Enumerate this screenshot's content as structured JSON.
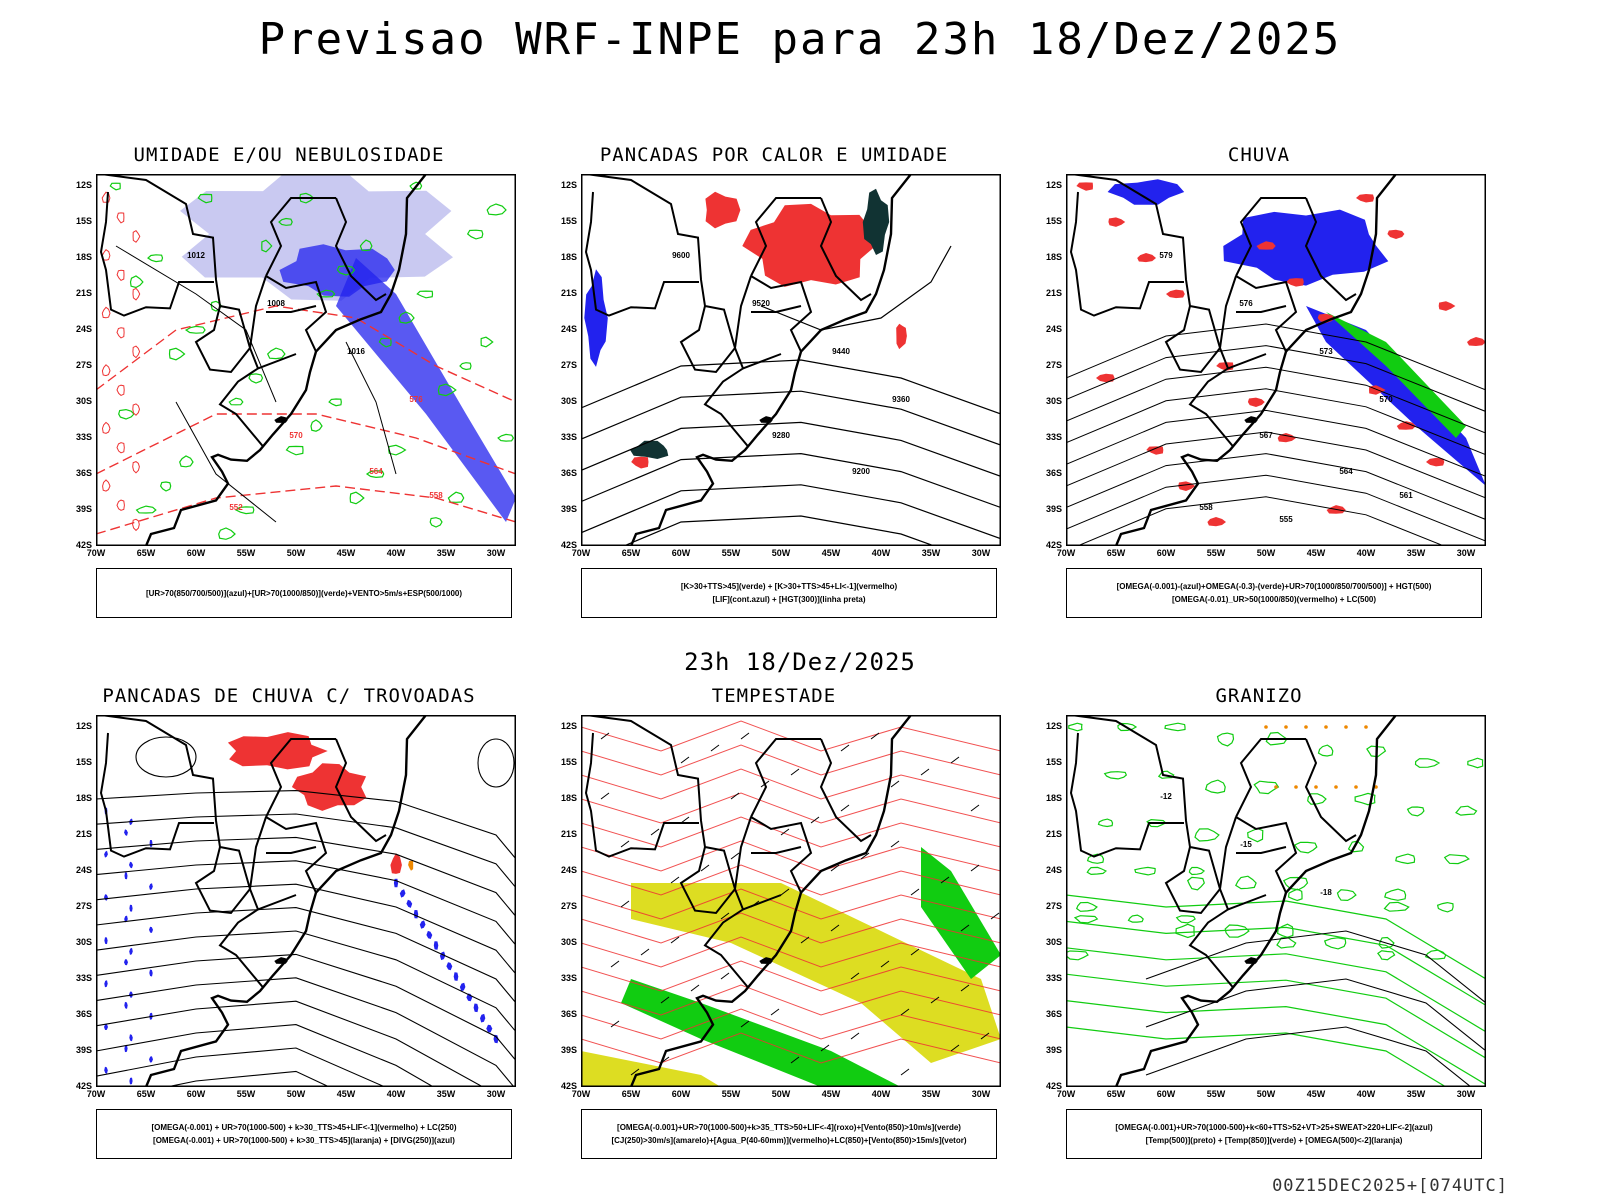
{
  "title": "Previsao WRF-INPE  para 23h 18/Dez/2025",
  "subtitle": "23h 18/Dez/2025",
  "footer": "00Z15DEC2025+[074UTC]",
  "lat_labels": [
    "12S",
    "15S",
    "18S",
    "21S",
    "24S",
    "27S",
    "30S",
    "33S",
    "36S",
    "39S",
    "42S"
  ],
  "lon_labels": [
    "70W",
    "65W",
    "60W",
    "55W",
    "50W",
    "45W",
    "40W",
    "35W",
    "30W"
  ],
  "colors": {
    "blue": "#2222ee",
    "light_blue": "#8888ee",
    "green": "#11cc11",
    "red": "#ee3333",
    "yellow": "#dddd22",
    "orange": "#ee8800",
    "dark_teal": "#113333"
  },
  "panels": [
    {
      "id": "umidade",
      "title": "UMIDADE E/OU NEBULOSIDADE",
      "legend": [
        "[UR>70(850/700/500)](azul)+[UR>70(1000/850)](verde)+VENTO>5m/s+ESP(500/1000)"
      ],
      "contour_labels": [
        "1012",
        "1008",
        "1016",
        "576",
        "570",
        "564",
        "558",
        "552"
      ]
    },
    {
      "id": "pancadas-calor",
      "title": "PANCADAS POR CALOR E UMIDADE",
      "legend": [
        "[K>30+TTS>45](verde) + [K>30+TTS>45+LI<-1](vermelho)",
        "[LIF](cont.azul) + [HGT(300)](linha preta)"
      ],
      "contour_labels": [
        "9600",
        "9520",
        "9440",
        "9360",
        "9280",
        "9200"
      ]
    },
    {
      "id": "chuva",
      "title": "CHUVA",
      "legend": [
        "[OMEGA(-0.001)-(azul)+OMEGA(-0.3)-(verde)+UR>70(1000/850/700/500)] + HGT(500)",
        "[OMEGA(-0.01)_UR>50(1000/850)(vermelho) + LC(500)"
      ],
      "contour_labels": [
        "579",
        "576",
        "573",
        "570",
        "567",
        "564",
        "561",
        "558",
        "555"
      ]
    },
    {
      "id": "pancadas-trovoadas",
      "title": "PANCADAS DE CHUVA C/ TROVOADAS",
      "legend": [
        "[OMEGA(-0.001) + UR>70(1000-500) + k>30_TTS>45+LIF<-1](vermelho) + LC(250)",
        "[OMEGA(-0.001) + UR>70(1000-500) + k>30_TTS>45](laranja) + [DIVG(250)](azul)"
      ],
      "contour_labels": []
    },
    {
      "id": "tempestade",
      "title": "TEMPESTADE",
      "legend": [
        "[OMEGA(-0.001)+UR>70(1000-500)+k>35_TTS>50+LIF<-4](roxo)+[Vento(850)>10m/s](verde)",
        "[CJ(250)>30m/s](amarelo)+[Agua_P(40-60mm)](vermelho)+LC(850)+[Vento(850)>15m/s](vetor)"
      ],
      "contour_labels": []
    },
    {
      "id": "granizo",
      "title": "GRANIZO",
      "legend": [
        "[OMEGA(-0.001)+UR>70(1000-500)+k<60+TTS>52+VT>25+SWEAT>220+LIF<-2](azul)",
        "[Temp(500)](preto) + [Temp(850)](verde) + [OMEGA(500)<-2](laranja)"
      ],
      "contour_labels": [
        "-12",
        "-15",
        "-18"
      ]
    }
  ]
}
